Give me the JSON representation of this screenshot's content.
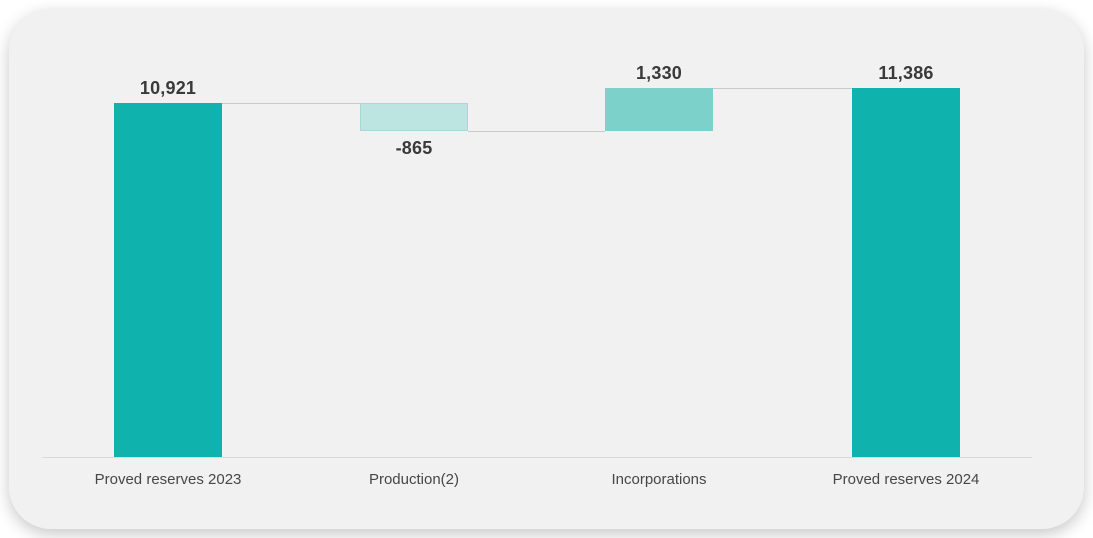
{
  "chart_data": {
    "type": "bar",
    "subtype": "waterfall",
    "title": "",
    "xlabel": "",
    "ylabel": "",
    "categories": [
      "Proved reserves 2023",
      "Production(2)",
      "Incorporations",
      "Proved reserves 2024"
    ],
    "bars": [
      {
        "label": "Proved reserves 2023",
        "value": 10921,
        "display": "10,921",
        "kind": "total"
      },
      {
        "label": "Production(2)",
        "value": -865,
        "display": "-865",
        "kind": "decrease"
      },
      {
        "label": "Incorporations",
        "value": 1330,
        "display": "1,330",
        "kind": "increase"
      },
      {
        "label": "Proved reserves 2024",
        "value": 11386,
        "display": "11,386",
        "kind": "total"
      }
    ],
    "cumulative_levels": [
      10921,
      10056,
      11386,
      11386
    ],
    "ylim": [
      0,
      11386
    ],
    "grid": false,
    "legend": "none",
    "colors": {
      "total": "#0fb2ac",
      "increase": "#7cd1ca",
      "decrease": "#bce4e0",
      "decrease_border": "#a9d9d4",
      "connector": "#c9c9c9",
      "axis_line": "#d9d9d9",
      "value_label": "#3a3a3a",
      "category_label": "#474747",
      "card_background": "#f1f1f2",
      "page_background": "#ffffff"
    }
  }
}
